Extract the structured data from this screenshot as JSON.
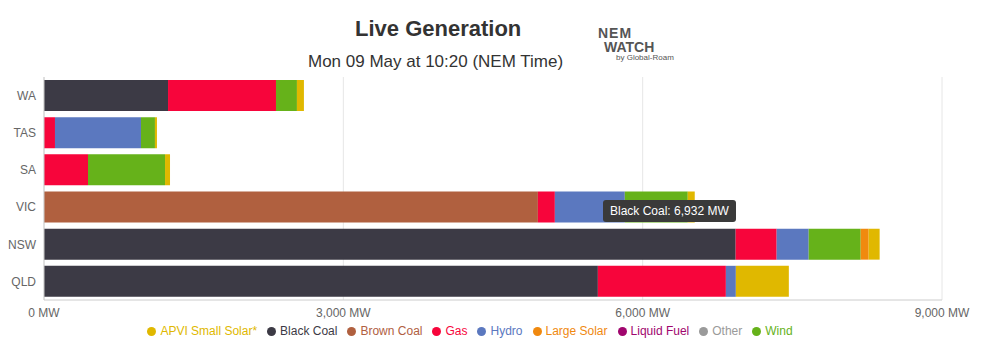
{
  "chart_data": {
    "type": "bar",
    "title": "Live Generation",
    "subtitle": "Mon 09 May at 10:20 (NEM Time)",
    "logo": [
      "NEM",
      "WATCH",
      "by Global-Roam"
    ],
    "tooltip": "Black Coal: 6,932 MW",
    "orientation": "horizontal",
    "stacked": true,
    "grid": true,
    "legend": "bottom",
    "categories": [
      "WA",
      "TAS",
      "SA",
      "VIC",
      "NSW",
      "QLD"
    ],
    "series": [
      {
        "name": "Black Coal",
        "color": "#3c3a45",
        "values": [
          1243,
          0,
          0,
          0,
          6932,
          5551
        ]
      },
      {
        "name": "Brown Coal",
        "color": "#b0603f",
        "values": [
          0,
          0,
          0,
          4950,
          0,
          0
        ]
      },
      {
        "name": "Gas",
        "color": "#f7053b",
        "values": [
          1082,
          110,
          441,
          170,
          411,
          1283
        ]
      },
      {
        "name": "Liquid Fuel",
        "color": "#a0066e",
        "values": [
          0,
          0,
          0,
          0,
          0,
          0
        ]
      },
      {
        "name": "Other",
        "color": "#9a9a9a",
        "values": [
          0,
          0,
          0,
          0,
          0,
          0
        ]
      },
      {
        "name": "Hydro",
        "color": "#5b78bf",
        "values": [
          0,
          862,
          0,
          701,
          321,
          100
        ]
      },
      {
        "name": "Wind",
        "color": "#66b21a",
        "values": [
          210,
          140,
          772,
          631,
          521,
          0
        ]
      },
      {
        "name": "Large Solar",
        "color": "#f0890f",
        "values": [
          0,
          0,
          0,
          0,
          80,
          0
        ]
      },
      {
        "name": "APVI Small Solar*",
        "color": "#e0b800",
        "values": [
          70,
          20,
          50,
          70,
          110,
          531
        ]
      }
    ],
    "xlim": [
      0,
      9000
    ],
    "xticks": [
      {
        "value": 0,
        "label": "0 MW"
      },
      {
        "value": 3000,
        "label": "3,000 MW"
      },
      {
        "value": 6000,
        "label": "6,000 MW"
      },
      {
        "value": 9000,
        "label": "9,000 MW"
      }
    ]
  }
}
